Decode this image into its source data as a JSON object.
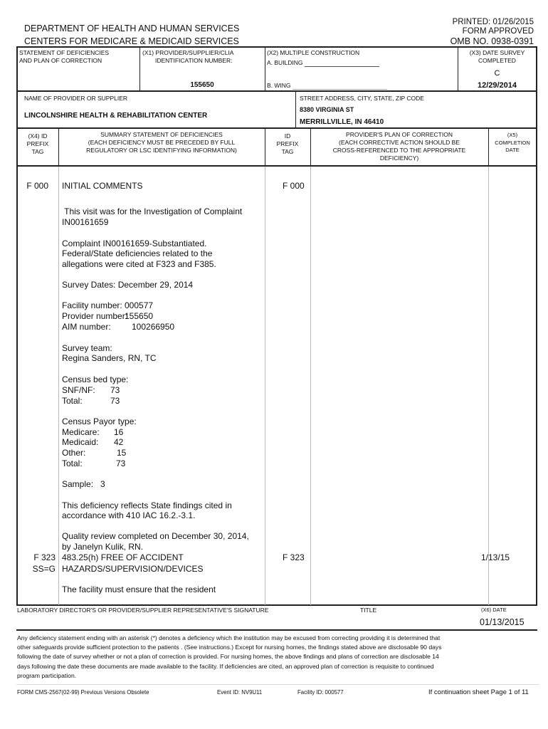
{
  "header": {
    "dept": "DEPARTMENT OF HEALTH AND HUMAN SERVICES",
    "centers": "CENTERS FOR MEDICARE & MEDICAID SERVICES",
    "printed": "PRINTED:  01/26/2015",
    "form_approved": "FORM APPROVED",
    "omb": "OMB NO. 0938-0391"
  },
  "row1": {
    "statement_l1": "STATEMENT OF DEFICIENCIES",
    "statement_l2": "AND PLAN OF CORRECTION",
    "x1_l1": "(X1)  PROVIDER/SUPPLIER/CLIA",
    "x1_l2": "IDENTIFICATION NUMBER:",
    "x1_value": "155650",
    "x2_label": "(X2) MULTIPLE CONSTRUCTION",
    "building_label": "A. BUILDING",
    "wing_label": "B. WING",
    "x3_l1": "(X3) DATE SURVEY",
    "x3_l2": "COMPLETED",
    "x3_code": "C",
    "x3_date": "12/29/2014"
  },
  "row2": {
    "name_label": "NAME OF PROVIDER OR SUPPLIER",
    "name_value": "LINCOLNSHIRE HEALTH & REHABILITATION CENTER",
    "address_label": "STREET ADDRESS, CITY, STATE, ZIP CODE",
    "street": "8380 VIRGINIA ST",
    "city": "MERRILLVILLE, IN  46410"
  },
  "columns": {
    "x4": [
      "(X4) ID",
      "PREFIX",
      "TAG"
    ],
    "summary": [
      "SUMMARY STATEMENT OF DEFICIENCIES",
      "(EACH DEFICIENCY MUST BE PRECEDED BY FULL",
      "REGULATORY OR LSC IDENTIFYING INFORMATION)"
    ],
    "id": [
      "ID",
      "PREFIX",
      "TAG"
    ],
    "plan": [
      "PROVIDER'S PLAN OF CORRECTION",
      "(EACH CORRECTIVE ACTION SHOULD BE",
      "CROSS-REFERENCED TO THE APPROPRIATE",
      "DEFICIENCY)"
    ],
    "x5": [
      "(X5)",
      "COMPLETION",
      "DATE"
    ]
  },
  "body": {
    "tag1": "F 000",
    "id1": "F 000",
    "tag2": "F 323",
    "tag2_sub": "SS=G",
    "id2": "F 323",
    "completion2": "1/13/15",
    "lines": [
      "INITIAL COMMENTS",
      " This visit was for the Investigation of Complaint",
      "IN00161659",
      "Complaint IN00161659-Substantiated.",
      "Federal/State deficiencies related to the",
      "allegations were cited at F323 and F385.",
      "Survey Dates: December 29, 2014",
      "Survey team:",
      "Regina Sanders, RN, TC",
      "Census bed type:",
      "Census Payor type:",
      "Sample:   3",
      "This deficiency reflects State findings cited in",
      "accordance with 410 IAC 16.2.-3.1.",
      "Quality review completed on December 30, 2014,",
      "by Janelyn Kulik, RN.",
      "483.25(h) FREE OF ACCIDENT",
      "HAZARDS/SUPERVISION/DEVICES",
      "The facility must ensure that the resident"
    ],
    "facility_pairs": [
      {
        "label": "Facility number:",
        "value": "000577"
      },
      {
        "label": "Provider number:",
        "value": "155650"
      },
      {
        "label": "AIM number:",
        "value": "100266950"
      }
    ],
    "bed_pairs": [
      {
        "label": "SNF/NF:",
        "value": "73"
      },
      {
        "label": "Total:",
        "value": "73"
      }
    ],
    "payor_pairs": [
      {
        "label": "Medicare:",
        "value": "16"
      },
      {
        "label": "Medicaid:",
        "value": "42"
      },
      {
        "label": "Other:",
        "value": "15"
      },
      {
        "label": "Total:",
        "value": "73"
      }
    ]
  },
  "signature": {
    "label": "LABORATORY DIRECTOR'S OR PROVIDER/SUPPLIER REPRESENTATIVE'S SIGNATURE",
    "title_label": "TITLE",
    "date_label": "(X6) DATE",
    "date_value": "01/13/2015"
  },
  "disclaimer": [
    "Any deficiency statement ending with an asterisk (*) denotes a deficiency which the institution may be excused from correcting providing it is determined that",
    "other safeguards provide sufficient protection to the patients . (See instructions.)  Except for nursing homes, the findings stated above are disclosable 90 days",
    "following the date of survey whether or not a plan of correction is provided.  For nursing homes, the above findings and plans of correction are disclosable 14",
    "days following the date these documents are made available to the facility.  If deficiencies are cited, an approved plan of correction is requisite to continued",
    "program participation."
  ],
  "footer": {
    "form": "FORM CMS-2567(02-99) Previous Versions Obsolete",
    "event": "Event ID: NV9U11",
    "facility": "Facility ID:  000577",
    "page": "If continuation sheet Page  1 of 11"
  }
}
